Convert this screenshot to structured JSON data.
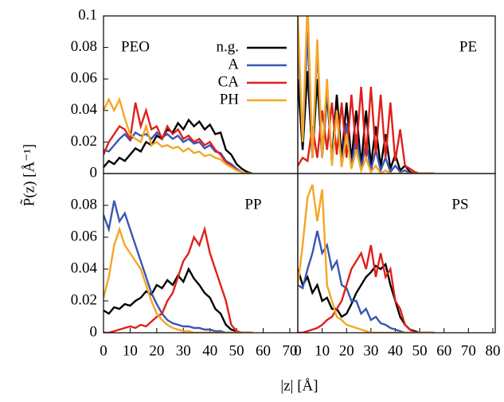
{
  "chart_data": [
    {
      "type": "line",
      "title": "PEO",
      "ylabel": "P̃(z) [Å⁻¹]",
      "x": [
        0,
        2,
        4,
        6,
        8,
        10,
        12,
        14,
        16,
        18,
        20,
        22,
        24,
        26,
        28,
        30,
        32,
        34,
        36,
        38,
        40,
        42,
        44,
        46,
        48,
        50,
        52,
        54,
        56
      ],
      "xlim": [
        0,
        73
      ],
      "ylim": [
        0,
        0.1
      ],
      "yticks": [
        0,
        0.02,
        0.04,
        0.06,
        0.08,
        0.1
      ],
      "series": [
        {
          "name": "n.g.",
          "color": "#000000",
          "values": [
            0.004,
            0.008,
            0.006,
            0.01,
            0.008,
            0.012,
            0.016,
            0.014,
            0.02,
            0.018,
            0.024,
            0.022,
            0.028,
            0.026,
            0.032,
            0.028,
            0.034,
            0.03,
            0.033,
            0.028,
            0.031,
            0.025,
            0.026,
            0.015,
            0.012,
            0.006,
            0.003,
            0.001,
            0
          ]
        },
        {
          "name": "A",
          "color": "#3a55b4",
          "values": [
            0.015,
            0.014,
            0.018,
            0.022,
            0.025,
            0.021,
            0.026,
            0.024,
            0.025,
            0.022,
            0.026,
            0.023,
            0.025,
            0.022,
            0.024,
            0.02,
            0.022,
            0.019,
            0.02,
            0.016,
            0.018,
            0.014,
            0.013,
            0.008,
            0.006,
            0.003,
            0.001,
            0,
            0
          ]
        },
        {
          "name": "CA",
          "color": "#e0201b",
          "values": [
            0.012,
            0.02,
            0.025,
            0.03,
            0.028,
            0.022,
            0.045,
            0.03,
            0.04,
            0.028,
            0.03,
            0.022,
            0.03,
            0.025,
            0.028,
            0.022,
            0.024,
            0.02,
            0.022,
            0.018,
            0.02,
            0.015,
            0.012,
            0.007,
            0.005,
            0.002,
            0.001,
            0,
            0
          ]
        },
        {
          "name": "PH",
          "color": "#f5a623",
          "values": [
            0.04,
            0.047,
            0.04,
            0.047,
            0.035,
            0.025,
            0.022,
            0.02,
            0.03,
            0.018,
            0.02,
            0.017,
            0.018,
            0.016,
            0.017,
            0.014,
            0.016,
            0.013,
            0.014,
            0.011,
            0.012,
            0.01,
            0.009,
            0.006,
            0.004,
            0.002,
            0.001,
            0,
            0
          ]
        }
      ]
    },
    {
      "type": "line",
      "title": "PE",
      "x": [
        0,
        2,
        4,
        6,
        8,
        10,
        12,
        14,
        16,
        18,
        20,
        22,
        24,
        26,
        28,
        30,
        32,
        34,
        36,
        38,
        40,
        42,
        44,
        46,
        48,
        50,
        52,
        54,
        56
      ],
      "xlim": [
        0,
        81
      ],
      "ylim": [
        0,
        0.1
      ],
      "series": [
        {
          "color": "#000000",
          "values": [
            0.06,
            0.015,
            0.065,
            0.01,
            0.06,
            0.01,
            0.05,
            0.008,
            0.05,
            0.01,
            0.045,
            0.008,
            0.04,
            0.005,
            0.04,
            0.005,
            0.03,
            0.004,
            0.025,
            0.003,
            0.012,
            0.002,
            0.005,
            0.001,
            0,
            0,
            0,
            0,
            0
          ]
        },
        {
          "color": "#3a55b4",
          "values": [
            0.085,
            0.02,
            0.09,
            0.01,
            0.08,
            0.01,
            0.055,
            0.008,
            0.04,
            0.005,
            0.032,
            0.004,
            0.025,
            0.003,
            0.02,
            0.002,
            0.015,
            0.002,
            0.01,
            0.001,
            0.005,
            0.001,
            0.002,
            0,
            0,
            0,
            0,
            0,
            0
          ]
        },
        {
          "color": "#e0201b",
          "values": [
            0.005,
            0.01,
            0.008,
            0.03,
            0.01,
            0.04,
            0.015,
            0.045,
            0.012,
            0.045,
            0.01,
            0.05,
            0.015,
            0.055,
            0.01,
            0.055,
            0.012,
            0.05,
            0.01,
            0.045,
            0.008,
            0.028,
            0.005,
            0.003,
            0.001,
            0,
            0,
            0,
            0
          ]
        },
        {
          "color": "#f5a623",
          "values": [
            0.1,
            0.02,
            0.11,
            0.01,
            0.085,
            0.01,
            0.06,
            0.005,
            0.04,
            0.004,
            0.025,
            0.003,
            0.015,
            0.002,
            0.01,
            0.001,
            0.005,
            0,
            0.002,
            0,
            0,
            0,
            0,
            0,
            0,
            0,
            0,
            0,
            0
          ]
        }
      ]
    },
    {
      "type": "line",
      "title": "PP",
      "xlabel": "|z| [Å]",
      "x": [
        0,
        2,
        4,
        6,
        8,
        10,
        12,
        14,
        16,
        18,
        20,
        22,
        24,
        26,
        28,
        30,
        32,
        34,
        36,
        38,
        40,
        42,
        44,
        46,
        48,
        50,
        52,
        54,
        56
      ],
      "xlim": [
        0,
        73
      ],
      "ylim": [
        0,
        0.1
      ],
      "yticks": [
        0,
        0.02,
        0.04,
        0.06,
        0.08
      ],
      "xticks": [
        0,
        10,
        20,
        30,
        40,
        50,
        60,
        70
      ],
      "series": [
        {
          "color": "#000000",
          "values": [
            0.014,
            0.012,
            0.016,
            0.015,
            0.018,
            0.017,
            0.02,
            0.022,
            0.026,
            0.024,
            0.03,
            0.028,
            0.033,
            0.03,
            0.036,
            0.032,
            0.04,
            0.034,
            0.03,
            0.025,
            0.022,
            0.015,
            0.012,
            0.005,
            0.002,
            0.001,
            0,
            0,
            0
          ]
        },
        {
          "color": "#3a55b4",
          "values": [
            0.074,
            0.065,
            0.083,
            0.07,
            0.075,
            0.065,
            0.055,
            0.045,
            0.035,
            0.025,
            0.018,
            0.012,
            0.008,
            0.006,
            0.005,
            0.004,
            0.004,
            0.003,
            0.003,
            0.002,
            0.002,
            0.001,
            0.001,
            0,
            0,
            0,
            0,
            0,
            0
          ]
        },
        {
          "color": "#e0201b",
          "values": [
            0,
            0,
            0.001,
            0.002,
            0.003,
            0.004,
            0.003,
            0.005,
            0.004,
            0.007,
            0.01,
            0.012,
            0.02,
            0.025,
            0.035,
            0.045,
            0.05,
            0.06,
            0.055,
            0.065,
            0.05,
            0.04,
            0.03,
            0.02,
            0.005,
            0.001,
            0,
            0,
            0
          ]
        },
        {
          "color": "#f5a623",
          "values": [
            0.022,
            0.035,
            0.055,
            0.065,
            0.055,
            0.05,
            0.045,
            0.04,
            0.03,
            0.02,
            0.012,
            0.008,
            0.005,
            0.003,
            0.002,
            0.001,
            0.001,
            0,
            0,
            0,
            0,
            0,
            0,
            0,
            0,
            0,
            0,
            0,
            0
          ]
        }
      ]
    },
    {
      "type": "line",
      "title": "PS",
      "x": [
        0,
        2,
        4,
        6,
        8,
        10,
        12,
        14,
        16,
        18,
        20,
        22,
        24,
        26,
        28,
        30,
        32,
        34,
        36,
        38,
        40,
        42,
        44,
        46,
        48,
        50,
        52,
        54,
        56
      ],
      "xlim": [
        0,
        81
      ],
      "ylim": [
        0,
        0.1
      ],
      "xticks": [
        0,
        10,
        20,
        30,
        40,
        50,
        60,
        70,
        80
      ],
      "series": [
        {
          "color": "#000000",
          "values": [
            0.04,
            0.03,
            0.035,
            0.025,
            0.03,
            0.02,
            0.022,
            0.015,
            0.015,
            0.01,
            0.012,
            0.018,
            0.025,
            0.03,
            0.035,
            0.038,
            0.042,
            0.04,
            0.043,
            0.03,
            0.02,
            0.01,
            0.005,
            0.002,
            0.001,
            0,
            0,
            0,
            0
          ]
        },
        {
          "color": "#3a55b4",
          "values": [
            0.03,
            0.028,
            0.04,
            0.05,
            0.064,
            0.05,
            0.055,
            0.04,
            0.045,
            0.03,
            0.028,
            0.02,
            0.02,
            0.012,
            0.015,
            0.008,
            0.01,
            0.006,
            0.005,
            0.003,
            0.002,
            0.001,
            0,
            0,
            0,
            0,
            0,
            0,
            0
          ]
        },
        {
          "color": "#e0201b",
          "values": [
            0,
            0,
            0.001,
            0.002,
            0.003,
            0.005,
            0.008,
            0.01,
            0.015,
            0.02,
            0.03,
            0.04,
            0.045,
            0.05,
            0.04,
            0.055,
            0.035,
            0.05,
            0.035,
            0.04,
            0.02,
            0.015,
            0.005,
            0.002,
            0,
            0,
            0,
            0,
            0
          ]
        },
        {
          "color": "#f5a623",
          "values": [
            0.03,
            0.055,
            0.085,
            0.093,
            0.07,
            0.09,
            0.03,
            0.02,
            0.01,
            0.008,
            0.005,
            0.004,
            0.003,
            0.002,
            0.001,
            0,
            0,
            0,
            0,
            0,
            0,
            0,
            0,
            0,
            0,
            0,
            0,
            0,
            0
          ]
        }
      ]
    }
  ]
}
